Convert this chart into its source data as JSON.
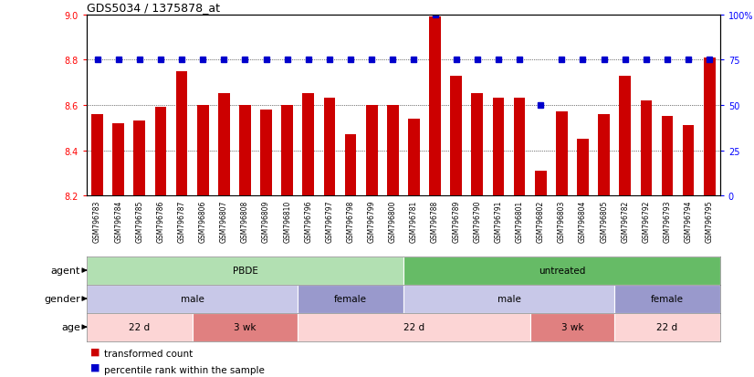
{
  "title": "GDS5034 / 1375878_at",
  "samples": [
    "GSM796783",
    "GSM796784",
    "GSM796785",
    "GSM796786",
    "GSM796787",
    "GSM796806",
    "GSM796807",
    "GSM796808",
    "GSM796809",
    "GSM796810",
    "GSM796796",
    "GSM796797",
    "GSM796798",
    "GSM796799",
    "GSM796800",
    "GSM796781",
    "GSM796788",
    "GSM796789",
    "GSM796790",
    "GSM796791",
    "GSM796801",
    "GSM796802",
    "GSM796803",
    "GSM796804",
    "GSM796805",
    "GSM796782",
    "GSM796792",
    "GSM796793",
    "GSM796794",
    "GSM796795"
  ],
  "bar_values": [
    8.56,
    8.52,
    8.53,
    8.59,
    8.75,
    8.6,
    8.65,
    8.6,
    8.58,
    8.6,
    8.65,
    8.63,
    8.47,
    8.6,
    8.6,
    8.54,
    8.99,
    8.73,
    8.65,
    8.63,
    8.63,
    8.31,
    8.57,
    8.45,
    8.56,
    8.73,
    8.62,
    8.55,
    8.51,
    8.81
  ],
  "percentile_values": [
    75,
    75,
    75,
    75,
    75,
    75,
    75,
    75,
    75,
    75,
    75,
    75,
    75,
    75,
    75,
    75,
    100,
    75,
    75,
    75,
    75,
    50,
    75,
    75,
    75,
    75,
    75,
    75,
    75,
    75
  ],
  "ymin": 8.2,
  "ymax": 9.0,
  "yticks": [
    8.2,
    8.4,
    8.6,
    8.8,
    9.0
  ],
  "right_yticks": [
    0,
    25,
    50,
    75,
    100
  ],
  "bar_color": "#cc0000",
  "dot_color": "#0000cc",
  "bar_bottom": 8.2,
  "agent_groups": [
    {
      "label": "PBDE",
      "start": 0,
      "end": 15,
      "color": "#b2e0b2"
    },
    {
      "label": "untreated",
      "start": 15,
      "end": 30,
      "color": "#66bb66"
    }
  ],
  "gender_groups": [
    {
      "label": "male",
      "start": 0,
      "end": 10,
      "color": "#c8c8e8"
    },
    {
      "label": "female",
      "start": 10,
      "end": 15,
      "color": "#9999cc"
    },
    {
      "label": "male",
      "start": 15,
      "end": 25,
      "color": "#c8c8e8"
    },
    {
      "label": "female",
      "start": 25,
      "end": 30,
      "color": "#9999cc"
    }
  ],
  "age_groups": [
    {
      "label": "22 d",
      "start": 0,
      "end": 5,
      "color": "#fcd5d5"
    },
    {
      "label": "3 wk",
      "start": 5,
      "end": 10,
      "color": "#e08080"
    },
    {
      "label": "22 d",
      "start": 10,
      "end": 21,
      "color": "#fcd5d5"
    },
    {
      "label": "3 wk",
      "start": 21,
      "end": 25,
      "color": "#e08080"
    },
    {
      "label": "22 d",
      "start": 25,
      "end": 30,
      "color": "#fcd5d5"
    }
  ],
  "row_labels": [
    "agent",
    "gender",
    "age"
  ],
  "legend_items": [
    {
      "label": "transformed count",
      "color": "#cc0000"
    },
    {
      "label": "percentile rank within the sample",
      "color": "#0000cc"
    }
  ]
}
